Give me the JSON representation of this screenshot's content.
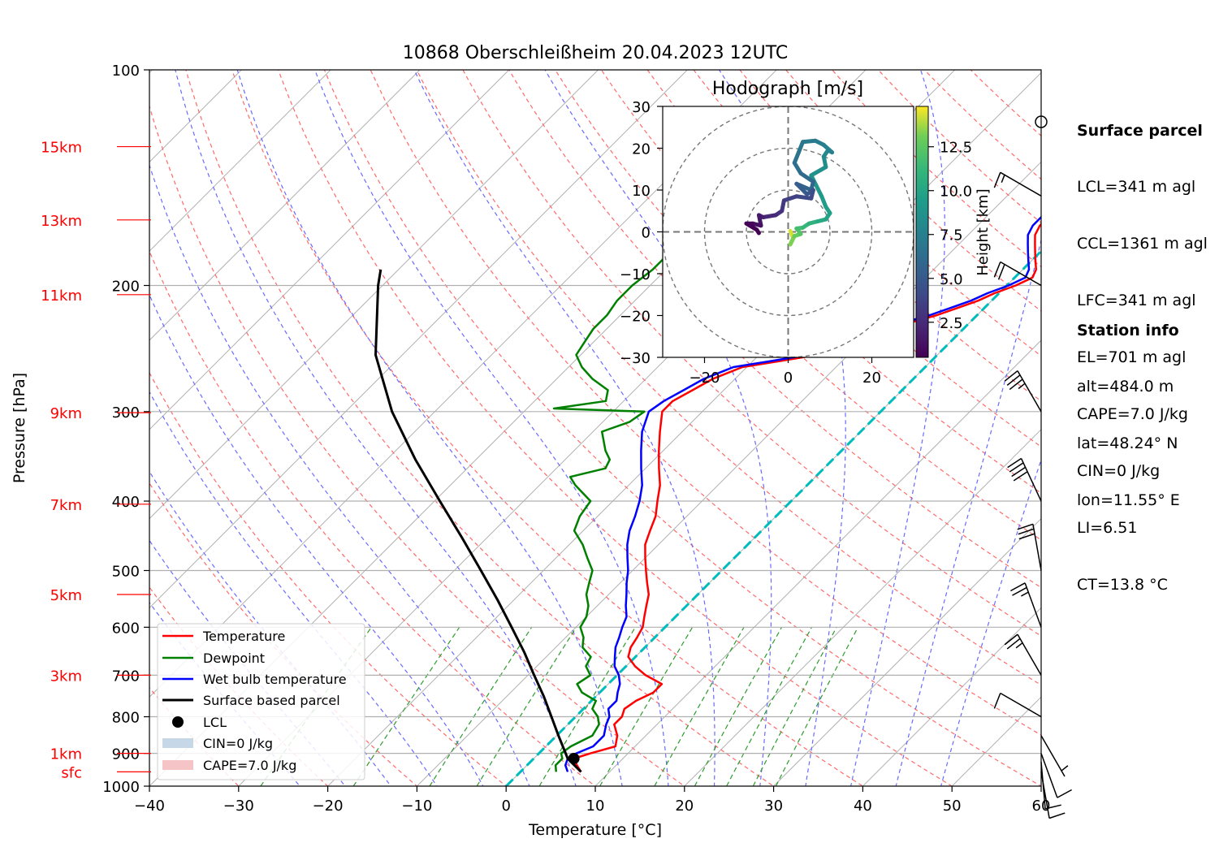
{
  "chart_data": {
    "type": "skew-t",
    "title": "10868 Oberschleißheim 20.04.2023 12UTC",
    "xlabel": "Temperature [°C]",
    "ylabel": "Pressure [hPa]",
    "xlim": [
      -40,
      60
    ],
    "ylim_hpa": [
      1000,
      100
    ],
    "x_ticks": [
      "−40",
      "−30",
      "−20",
      "−10",
      "0",
      "10",
      "20",
      "30",
      "40",
      "50",
      "60"
    ],
    "p_ticks": [
      100,
      200,
      300,
      400,
      500,
      600,
      700,
      800,
      900,
      1000
    ],
    "height_labels": [
      {
        "text": "15km",
        "p": 128
      },
      {
        "text": "13km",
        "p": 162
      },
      {
        "text": "11km",
        "p": 206
      },
      {
        "text": "9km",
        "p": 301
      },
      {
        "text": "7km",
        "p": 404
      },
      {
        "text": "5km",
        "p": 540
      },
      {
        "text": "3km",
        "p": 700
      },
      {
        "text": "1km",
        "p": 900
      },
      {
        "text": "sfc",
        "p": 955
      }
    ],
    "series": [
      {
        "name": "Temperature",
        "color": "#ff0000",
        "points": [
          [
            955,
            6.8
          ],
          [
            935,
            5.6
          ],
          [
            915,
            4.5
          ],
          [
            900,
            5.8
          ],
          [
            880,
            7.8
          ],
          [
            850,
            6.8
          ],
          [
            820,
            5.2
          ],
          [
            800,
            5.2
          ],
          [
            780,
            4.6
          ],
          [
            760,
            5.0
          ],
          [
            740,
            6.0
          ],
          [
            720,
            6.0
          ],
          [
            700,
            3.2
          ],
          [
            680,
            1.0
          ],
          [
            660,
            -0.8
          ],
          [
            640,
            -1.6
          ],
          [
            620,
            -2.0
          ],
          [
            600,
            -2.5
          ],
          [
            580,
            -3.5
          ],
          [
            560,
            -4.5
          ],
          [
            540,
            -5.5
          ],
          [
            520,
            -7.0
          ],
          [
            500,
            -8.5
          ],
          [
            480,
            -10.0
          ],
          [
            460,
            -11.5
          ],
          [
            440,
            -12.5
          ],
          [
            420,
            -13.5
          ],
          [
            400,
            -15.0
          ],
          [
            380,
            -16.5
          ],
          [
            360,
            -18.5
          ],
          [
            340,
            -20.5
          ],
          [
            320,
            -22.5
          ],
          [
            300,
            -24.5
          ],
          [
            290,
            -24.5
          ],
          [
            280,
            -23.5
          ],
          [
            270,
            -22.5
          ],
          [
            260,
            -20.5
          ],
          [
            255,
            -17.0
          ],
          [
            250,
            -13.5
          ],
          [
            245,
            -11.0
          ],
          [
            240,
            -10.0
          ],
          [
            235,
            -8.5
          ],
          [
            230,
            -7.5
          ],
          [
            225,
            -6.5
          ],
          [
            220,
            -4.5
          ],
          [
            215,
            -3.0
          ],
          [
            210,
            -1.5
          ],
          [
            205,
            -0.5
          ],
          [
            200,
            1.0
          ],
          [
            195,
            2.0
          ],
          [
            190,
            1.5
          ],
          [
            185,
            0.5
          ],
          [
            180,
            -0.5
          ],
          [
            175,
            -1.5
          ],
          [
            170,
            -2.5
          ],
          [
            165,
            -3.0
          ],
          [
            160,
            -3.0
          ],
          [
            155,
            -2.5
          ],
          [
            150,
            -2.0
          ],
          [
            145,
            -1.0
          ],
          [
            140,
            0.5
          ],
          [
            135,
            2.0
          ],
          [
            130,
            4.5
          ],
          [
            128,
            6.5
          ]
        ]
      },
      {
        "name": "Dewpoint",
        "color": "#008000",
        "points": [
          [
            955,
            4.0
          ],
          [
            935,
            3.2
          ],
          [
            915,
            3.2
          ],
          [
            900,
            2.5
          ],
          [
            880,
            2.8
          ],
          [
            850,
            4.0
          ],
          [
            820,
            3.5
          ],
          [
            800,
            2.5
          ],
          [
            780,
            1.0
          ],
          [
            760,
            0.5
          ],
          [
            740,
            -2.0
          ],
          [
            720,
            -3.5
          ],
          [
            700,
            -3.0
          ],
          [
            680,
            -4.5
          ],
          [
            660,
            -5.0
          ],
          [
            640,
            -7.0
          ],
          [
            620,
            -8.0
          ],
          [
            600,
            -9.5
          ],
          [
            580,
            -10.0
          ],
          [
            560,
            -11.0
          ],
          [
            540,
            -12.5
          ],
          [
            520,
            -13.5
          ],
          [
            500,
            -14.5
          ],
          [
            480,
            -16.5
          ],
          [
            460,
            -18.5
          ],
          [
            440,
            -21.0
          ],
          [
            420,
            -22.0
          ],
          [
            400,
            -22.5
          ],
          [
            380,
            -26.0
          ],
          [
            370,
            -27.5
          ],
          [
            360,
            -24.5
          ],
          [
            350,
            -25.0
          ],
          [
            340,
            -26.5
          ],
          [
            320,
            -29.0
          ],
          [
            310,
            -27.0
          ],
          [
            300,
            -26.5
          ],
          [
            297,
            -37.0
          ],
          [
            290,
            -32.0
          ],
          [
            280,
            -33.0
          ],
          [
            270,
            -36.0
          ],
          [
            260,
            -38.5
          ],
          [
            250,
            -40.5
          ],
          [
            240,
            -41.0
          ],
          [
            230,
            -41.5
          ],
          [
            220,
            -41.5
          ],
          [
            210,
            -42.0
          ],
          [
            200,
            -42.0
          ],
          [
            190,
            -41.5
          ],
          [
            180,
            -41.5
          ],
          [
            170,
            -42.0
          ],
          [
            160,
            -42.5
          ],
          [
            150,
            -43.0
          ],
          [
            140,
            -43.5
          ],
          [
            130,
            -44.5
          ],
          [
            128,
            -45.0
          ]
        ]
      },
      {
        "name": "Wet bulb temperature",
        "color": "#0000ff",
        "points": [
          [
            955,
            5.3
          ],
          [
            935,
            4.3
          ],
          [
            915,
            3.8
          ],
          [
            900,
            4.2
          ],
          [
            880,
            5.3
          ],
          [
            850,
            5.3
          ],
          [
            820,
            4.3
          ],
          [
            800,
            3.8
          ],
          [
            780,
            2.8
          ],
          [
            760,
            2.8
          ],
          [
            740,
            2.0
          ],
          [
            720,
            1.3
          ],
          [
            700,
            0.2
          ],
          [
            680,
            -1.3
          ],
          [
            660,
            -2.3
          ],
          [
            640,
            -3.3
          ],
          [
            620,
            -4.0
          ],
          [
            600,
            -4.8
          ],
          [
            580,
            -5.5
          ],
          [
            560,
            -6.8
          ],
          [
            540,
            -8.0
          ],
          [
            520,
            -9.3
          ],
          [
            500,
            -10.5
          ],
          [
            480,
            -12.0
          ],
          [
            460,
            -13.5
          ],
          [
            440,
            -14.8
          ],
          [
            420,
            -15.8
          ],
          [
            400,
            -17.0
          ],
          [
            380,
            -18.5
          ],
          [
            360,
            -20.5
          ],
          [
            340,
            -22.5
          ],
          [
            320,
            -24.5
          ],
          [
            300,
            -26.0
          ],
          [
            290,
            -25.5
          ],
          [
            280,
            -24.5
          ],
          [
            270,
            -23.5
          ],
          [
            260,
            -21.5
          ],
          [
            255,
            -18.0
          ],
          [
            250,
            -14.5
          ],
          [
            245,
            -11.8
          ],
          [
            240,
            -10.8
          ],
          [
            235,
            -9.3
          ],
          [
            230,
            -8.3
          ],
          [
            225,
            -7.3
          ],
          [
            220,
            -5.3
          ],
          [
            215,
            -3.8
          ],
          [
            210,
            -2.3
          ],
          [
            205,
            -1.3
          ],
          [
            200,
            0.2
          ],
          [
            195,
            1.2
          ],
          [
            190,
            0.7
          ],
          [
            185,
            -0.3
          ],
          [
            180,
            -1.3
          ],
          [
            175,
            -2.3
          ],
          [
            170,
            -3.3
          ],
          [
            165,
            -3.8
          ],
          [
            160,
            -3.8
          ],
          [
            155,
            -3.3
          ],
          [
            150,
            -2.8
          ],
          [
            145,
            -1.8
          ],
          [
            140,
            -0.3
          ],
          [
            135,
            1.2
          ],
          [
            130,
            3.7
          ],
          [
            128,
            5.7
          ]
        ]
      },
      {
        "name": "Surface based parcel",
        "color": "#000000",
        "points": [
          [
            955,
            6.8
          ],
          [
            915,
            3.8
          ],
          [
            900,
            3.0
          ],
          [
            850,
            0.2
          ],
          [
            800,
            -2.7
          ],
          [
            750,
            -5.8
          ],
          [
            700,
            -9.3
          ],
          [
            650,
            -13.0
          ],
          [
            600,
            -17.2
          ],
          [
            550,
            -21.8
          ],
          [
            500,
            -27.0
          ],
          [
            450,
            -32.8
          ],
          [
            400,
            -39.4
          ],
          [
            350,
            -46.8
          ],
          [
            300,
            -54.8
          ],
          [
            250,
            -63.0
          ],
          [
            200,
            -70.5
          ],
          [
            190,
            -72.0
          ]
        ]
      }
    ],
    "lcl": {
      "name": "LCL",
      "p": 915,
      "t": 4.5
    },
    "legend": [
      "Temperature",
      "Dewpoint",
      "Wet bulb temperature",
      "Surface based parcel",
      "LCL",
      "CIN=0 J/kg",
      "CAPE=7.0 J/kg"
    ],
    "legend_colors": {
      "cin": "#c6d8e8",
      "cape": "#f4c4c6"
    },
    "wind_barbs": [
      {
        "p": 955,
        "spd_kt": 10,
        "dir": 170
      },
      {
        "p": 925,
        "spd_kt": 12,
        "dir": 175
      },
      {
        "p": 900,
        "spd_kt": 8,
        "dir": 160
      },
      {
        "p": 850,
        "spd_kt": 5,
        "dir": 150
      },
      {
        "p": 800,
        "spd_kt": 10,
        "dir": 300
      },
      {
        "p": 700,
        "spd_kt": 25,
        "dir": 330
      },
      {
        "p": 600,
        "spd_kt": 25,
        "dir": 340
      },
      {
        "p": 500,
        "spd_kt": 30,
        "dir": 350
      },
      {
        "p": 400,
        "spd_kt": 40,
        "dir": 335
      },
      {
        "p": 300,
        "spd_kt": 35,
        "dir": 330
      },
      {
        "p": 200,
        "spd_kt": 20,
        "dir": 300
      },
      {
        "p": 150,
        "spd_kt": 15,
        "dir": 300
      }
    ],
    "hodograph": {
      "title": "Hodograph [m/s]",
      "xlim": [
        -30,
        30
      ],
      "ylim": [
        -30,
        30
      ],
      "ticks": [
        "−20",
        "0",
        "20"
      ],
      "yticks": [
        "30",
        "20",
        "10",
        "0",
        "−10",
        "−20",
        "−30"
      ],
      "rings": [
        10,
        20,
        30
      ],
      "colorbar_label": "Height [km]",
      "colorbar_ticks": [
        "2.5",
        "5.0",
        "7.5",
        "10.0",
        "12.5"
      ],
      "colorbar_range": [
        0.5,
        14.8
      ],
      "points": [
        [
          0.5,
          0.2,
          14.6
        ],
        [
          1.2,
          -1.5,
          14.0
        ],
        [
          0.5,
          -3.0,
          13.5
        ],
        [
          1.5,
          -1.0,
          13.0
        ],
        [
          3.0,
          -0.5,
          12.5
        ],
        [
          2.0,
          0.8,
          12.0
        ],
        [
          3.5,
          1.0,
          11.5
        ],
        [
          5.0,
          2.0,
          11.0
        ],
        [
          7.0,
          2.5,
          10.5
        ],
        [
          9.0,
          3.0,
          10.0
        ],
        [
          10.0,
          4.5,
          9.8
        ],
        [
          9.0,
          6.0,
          9.5
        ],
        [
          8.0,
          8.5,
          9.2
        ],
        [
          6.5,
          11.5,
          9.0
        ],
        [
          5.5,
          13.5,
          8.8
        ],
        [
          9.0,
          15.5,
          8.5
        ],
        [
          8.5,
          18.0,
          8.2
        ],
        [
          9.5,
          19.5,
          8.0
        ],
        [
          10.5,
          19.0,
          7.8
        ],
        [
          8.5,
          20.8,
          7.5
        ],
        [
          6.5,
          21.8,
          7.2
        ],
        [
          3.5,
          21.5,
          7.0
        ],
        [
          2.5,
          19.0,
          6.8
        ],
        [
          1.5,
          16.5,
          6.5
        ],
        [
          3.0,
          14.0,
          6.2
        ],
        [
          6.0,
          12.0,
          6.0
        ],
        [
          5.5,
          10.0,
          5.8
        ],
        [
          2.0,
          11.5,
          5.5
        ],
        [
          4.5,
          9.0,
          5.0
        ],
        [
          6.0,
          10.0,
          4.6
        ],
        [
          5.5,
          8.0,
          4.2
        ],
        [
          2.0,
          8.5,
          3.8
        ],
        [
          -1.0,
          7.5,
          3.4
        ],
        [
          -1.5,
          5.0,
          3.0
        ],
        [
          -3.0,
          4.0,
          2.6
        ],
        [
          -6.0,
          3.5,
          2.2
        ],
        [
          -7.0,
          4.0,
          1.8
        ],
        [
          -6.5,
          1.5,
          1.4
        ],
        [
          -8.5,
          2.0,
          1.0
        ],
        [
          -10.0,
          2.0,
          0.7
        ],
        [
          -7.5,
          0.5,
          0.5
        ],
        [
          -7.0,
          -0.3,
          0.5
        ]
      ]
    },
    "parcel_box_title": "Surface parcel",
    "parcel_box": [
      "LCL=341 m agl",
      "CCL=1361 m agl",
      "LFC=341 m agl",
      "EL=701 m agl",
      "CAPE=7.0 J/kg",
      "CIN=0 J/kg",
      "LI=6.51",
      "CT=13.8 °C"
    ],
    "station_box_title": "Station info",
    "station_box": [
      "alt=484.0 m",
      "lat=48.24° N",
      "lon=11.55° E"
    ],
    "colors": {
      "isotherm": "#b0b0b0",
      "dry_adiabat": "#ff6a6a",
      "moist_adiabat": "#6a6aff",
      "mixing_ratio": "#2c9c2c",
      "zero_isotherm": "#00bcbc",
      "height_label": "#ff0000"
    }
  }
}
